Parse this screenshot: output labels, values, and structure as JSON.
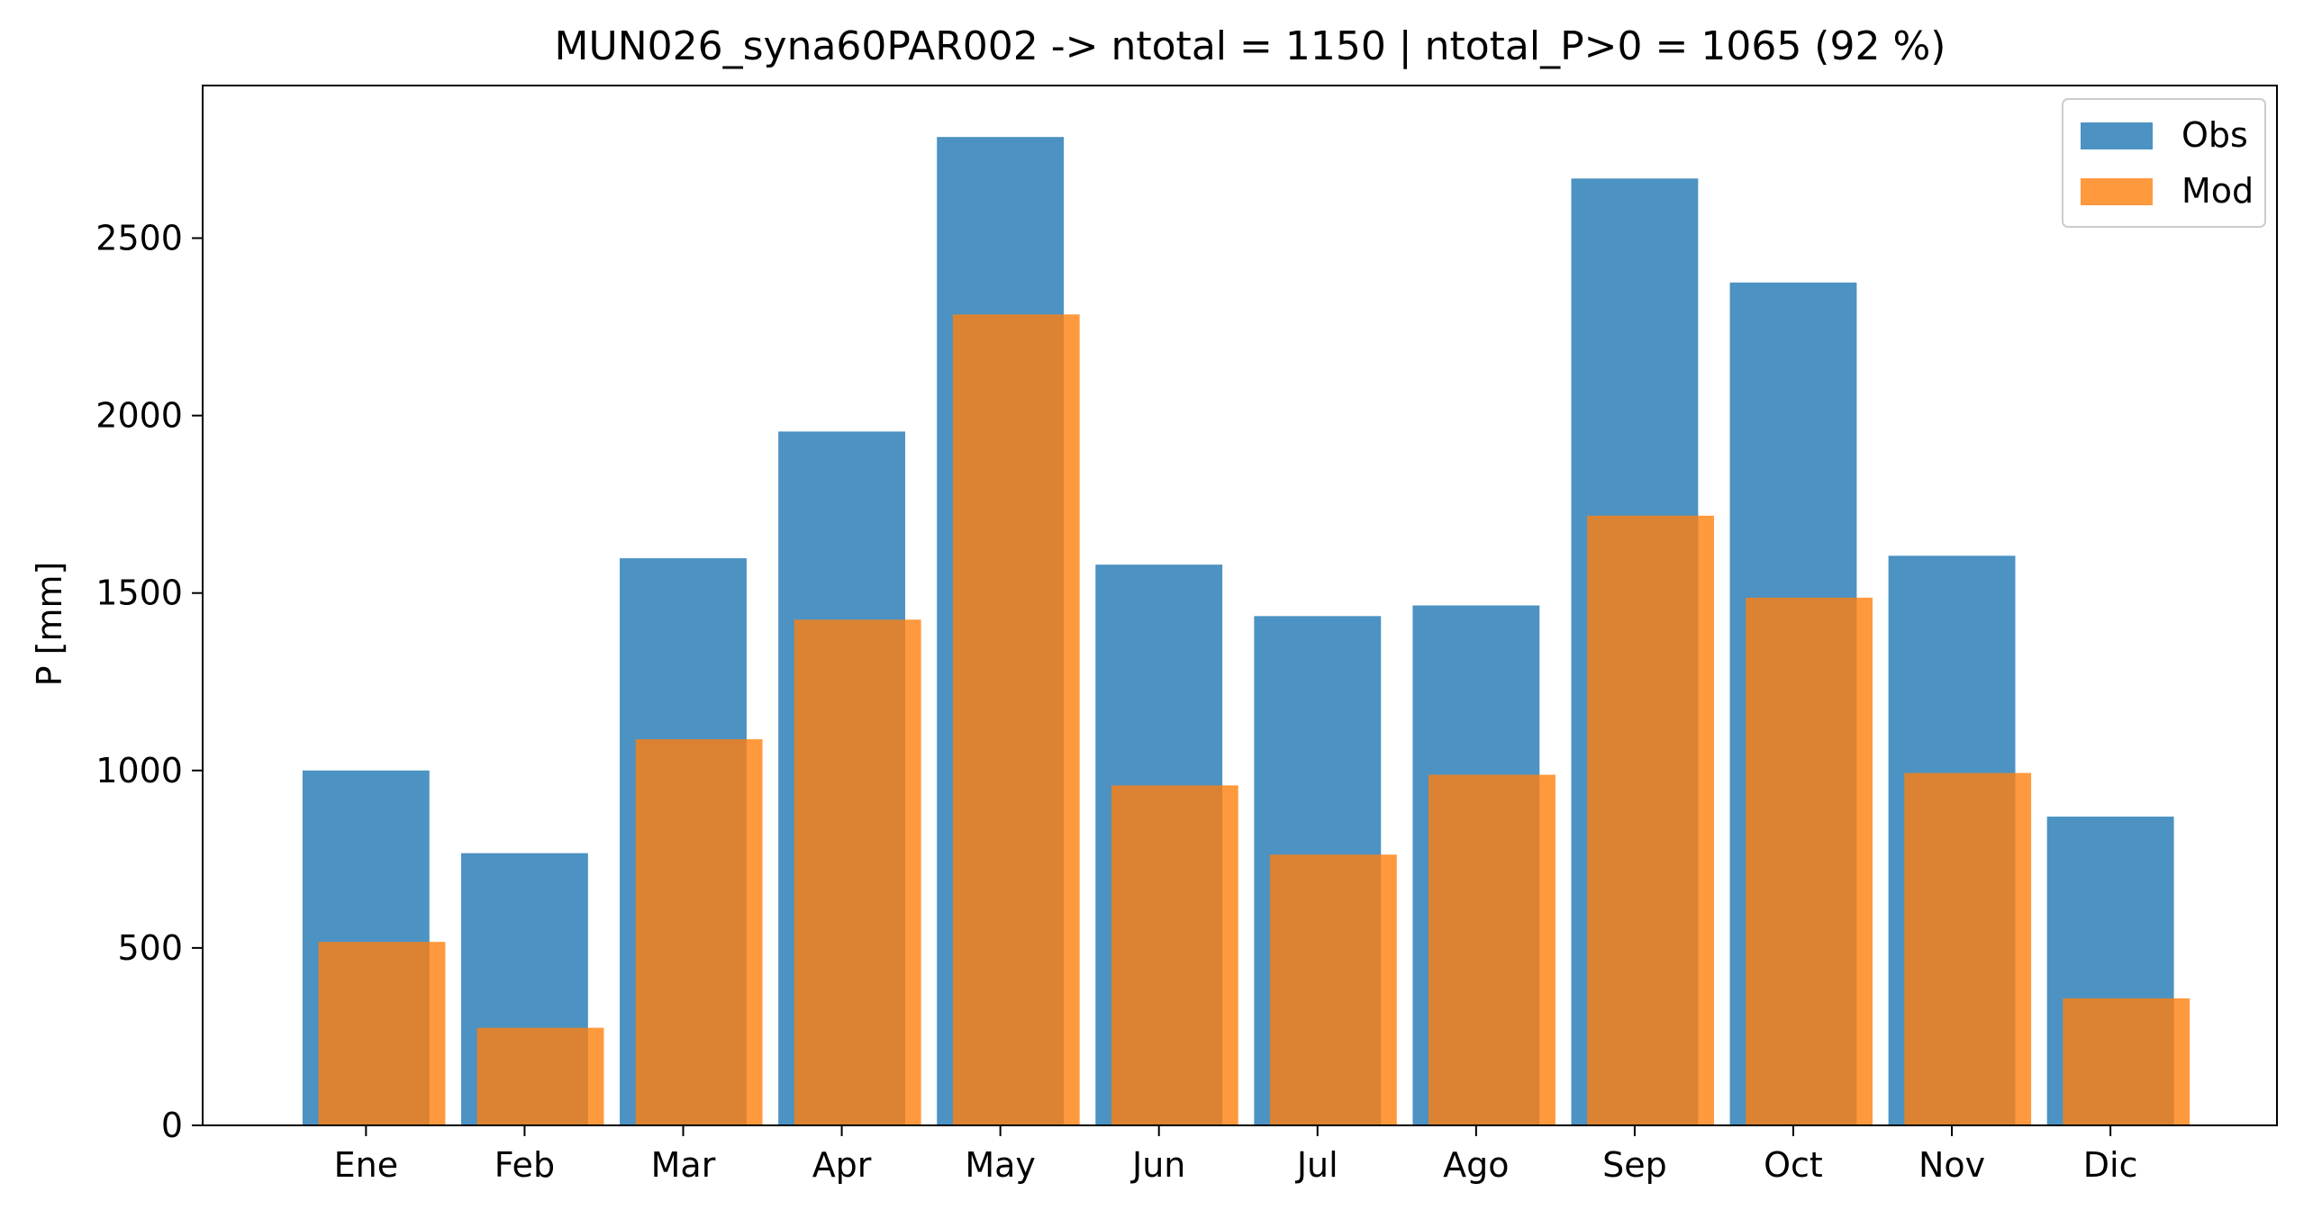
{
  "chart_data": {
    "type": "bar",
    "title": "MUN026_syna60PAR002 -> ntotal = 1150 | ntotal_P>0 = 1065 (92 %)",
    "xlabel": "",
    "ylabel": "P [mm]",
    "categories": [
      "Ene",
      "Feb",
      "Mar",
      "Apr",
      "May",
      "Jun",
      "Jul",
      "Ago",
      "Sep",
      "Oct",
      "Nov",
      "Dic"
    ],
    "ylim": [
      0,
      2930
    ],
    "yticks": [
      0,
      500,
      1000,
      1500,
      2000,
      2500
    ],
    "grid": false,
    "legend_position": "top-right",
    "series": [
      {
        "name": "Obs",
        "color": "#1f77b4",
        "opacity": 0.8,
        "values": [
          1000,
          767,
          1598,
          1955,
          2785,
          1580,
          1435,
          1465,
          2668,
          2375,
          1605,
          870
        ]
      },
      {
        "name": "Mod",
        "color": "#ff7f0e",
        "opacity": 0.8,
        "values": [
          517,
          275,
          1088,
          1425,
          2285,
          958,
          763,
          988,
          1718,
          1487,
          993,
          358
        ]
      }
    ]
  }
}
